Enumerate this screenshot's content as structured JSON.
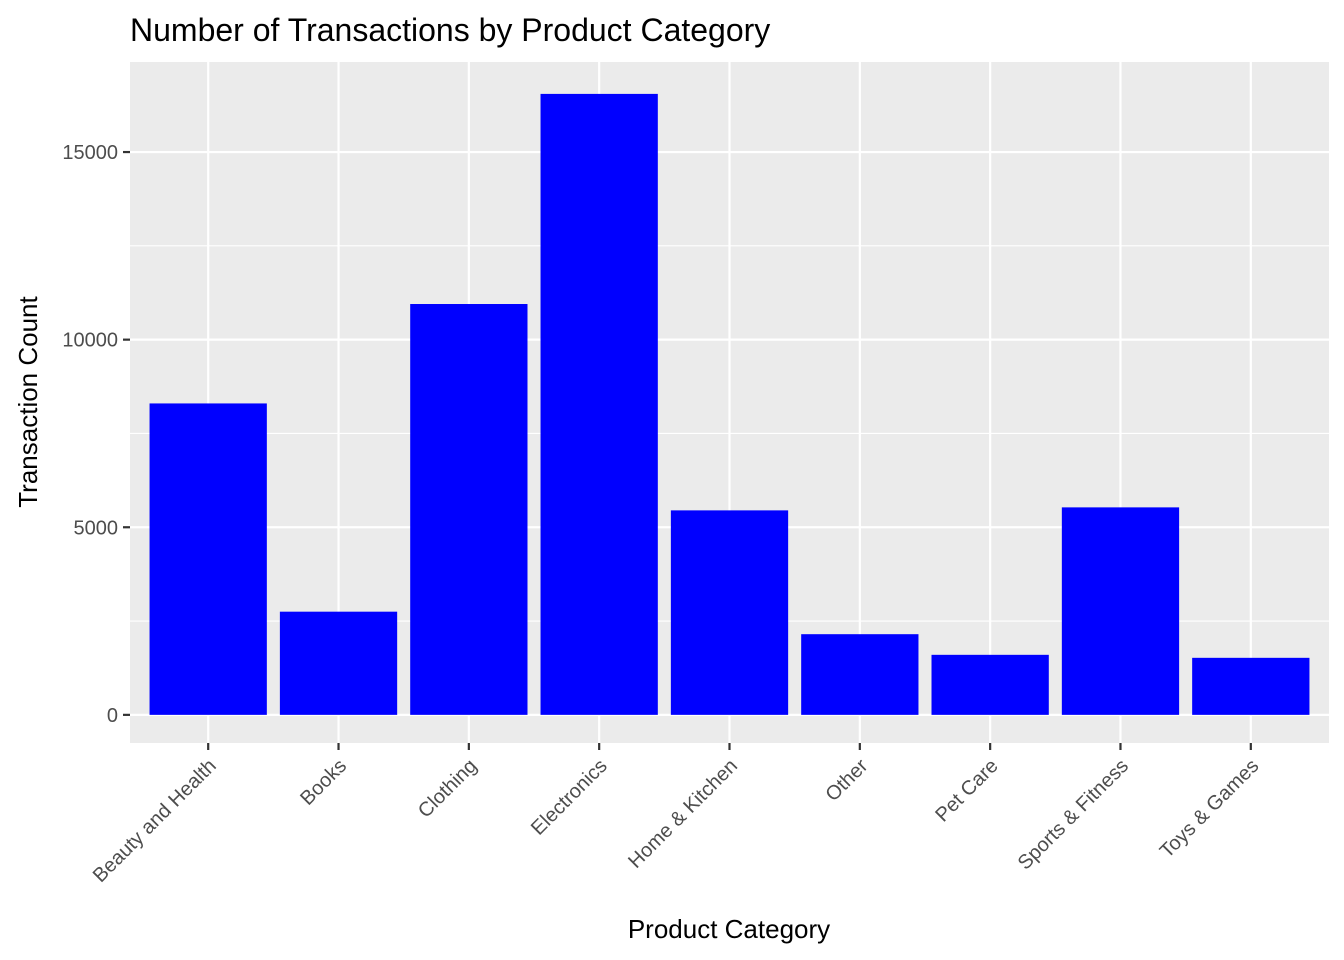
{
  "chart_data": {
    "type": "bar",
    "title": "Number of Transactions by Product Category",
    "xlabel": "Product Category",
    "ylabel": "Transaction Count",
    "categories": [
      "Beauty and Health",
      "Books",
      "Clothing",
      "Electronics",
      "Home & Kitchen",
      "Other",
      "Pet Care",
      "Sports & Fitness",
      "Toys & Games"
    ],
    "values": [
      8300,
      2750,
      10950,
      16550,
      5450,
      2150,
      1600,
      5530,
      1520
    ],
    "ylim": [
      -750,
      17400
    ],
    "yticks": [
      0,
      5000,
      10000,
      15000
    ],
    "ytick_labels": [
      "0",
      "5000",
      "10000",
      "15000"
    ],
    "grid": true,
    "legend": "none",
    "colors": {
      "bar": "#0000ff",
      "panel": "#ebebeb",
      "grid": "#ffffff"
    }
  }
}
